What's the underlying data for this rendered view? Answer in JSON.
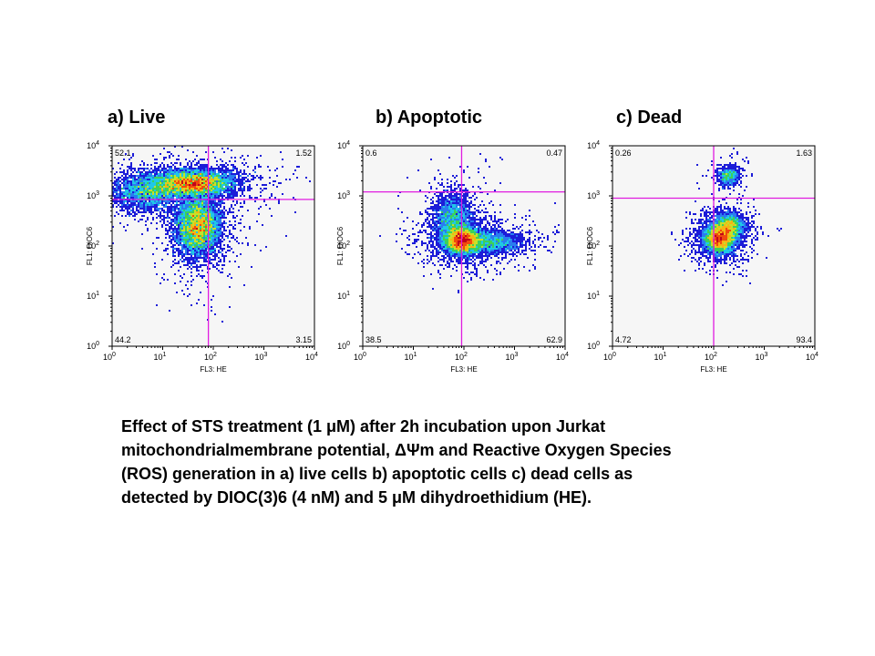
{
  "panels": [
    {
      "title": "a) Live",
      "xlabel": "FL3: HE",
      "ylabel": "FL1: DiOC6",
      "quadrants": {
        "ul": "52.1",
        "ur": "1.52",
        "ll": "44.2",
        "lr": "3.15"
      },
      "gate": {
        "x": 80,
        "y": 850
      }
    },
    {
      "title": "b) Apoptotic",
      "xlabel": "FL3: HE",
      "ylabel": "FL1: DiOC6",
      "quadrants": {
        "ul": "0.6",
        "ur": "0.47",
        "ll": "38.5",
        "lr": "62.9"
      },
      "gate": {
        "x": 90,
        "y": 1200
      }
    },
    {
      "title": "c) Dead",
      "xlabel": "FL3: HE",
      "ylabel": "FL1: DiOC6",
      "quadrants": {
        "ul": "0.26",
        "ur": "1.63",
        "ll": "4.72",
        "lr": "93.4"
      },
      "gate": {
        "x": 100,
        "y": 900
      }
    }
  ],
  "caption": {
    "line1": "Effect of STS treatment (1 μM) after 2h incubation upon Jurkat",
    "line2": "mitochondrialmembrane potential, ΔΨm and Reactive Oxygen Species",
    "line3": "(ROS) generation in a) live cells b) apoptotic cells c) dead cells as",
    "line4": "detected by DIOC(3)6 (4 nM) and 5 μM dihydroethidium (HE)."
  },
  "chart_data": [
    {
      "type": "scatter",
      "title": "a) Live",
      "xlabel": "FL3: HE",
      "ylabel": "FL1: DiOC6",
      "xscale": "log",
      "yscale": "log",
      "xlim": [
        1,
        10000
      ],
      "ylim": [
        1,
        10000
      ],
      "x_tick_labels": [
        "10^0",
        "10^1",
        "10^2",
        "10^3",
        "10^4"
      ],
      "y_tick_labels": [
        "10^0",
        "10^1",
        "10^2",
        "10^3",
        "10^4"
      ],
      "gate_lines": {
        "x": 80,
        "y": 850
      },
      "quadrant_percentages": {
        "upper_left": 52.1,
        "upper_right": 1.52,
        "lower_left": 44.2,
        "lower_right": 3.15
      },
      "populations": [
        {
          "center": [
            40,
            1800
          ],
          "spread_decades": [
            0.4,
            0.13
          ],
          "density": "high"
        },
        {
          "center": [
            50,
            250
          ],
          "spread_decades": [
            0.22,
            0.3
          ],
          "density": "high"
        },
        {
          "center": [
            5,
            1200
          ],
          "spread_decades": [
            0.35,
            0.18
          ],
          "density": "medium"
        }
      ]
    },
    {
      "type": "scatter",
      "title": "b) Apoptotic",
      "xlabel": "FL3: HE",
      "ylabel": "FL1: DiOC6",
      "xscale": "log",
      "yscale": "log",
      "xlim": [
        1,
        10000
      ],
      "ylim": [
        1,
        10000
      ],
      "x_tick_labels": [
        "10^0",
        "10^1",
        "10^2",
        "10^3",
        "10^4"
      ],
      "y_tick_labels": [
        "10^0",
        "10^1",
        "10^2",
        "10^3",
        "10^4"
      ],
      "gate_lines": {
        "x": 90,
        "y": 1200
      },
      "quadrant_percentages": {
        "upper_left": 0.6,
        "upper_right": 0.47,
        "lower_left": 38.5,
        "lower_right": 62.9
      },
      "populations": [
        {
          "center": [
            90,
            130
          ],
          "spread_decades": [
            0.18,
            0.14
          ],
          "density": "high"
        },
        {
          "center": [
            60,
            350
          ],
          "spread_decades": [
            0.2,
            0.25
          ],
          "density": "medium"
        },
        {
          "center": [
            300,
            120
          ],
          "spread_decades": [
            0.35,
            0.12
          ],
          "density": "medium"
        }
      ]
    },
    {
      "type": "scatter",
      "title": "c) Dead",
      "xlabel": "FL3: HE",
      "ylabel": "FL1: DiOC6",
      "xscale": "log",
      "yscale": "log",
      "xlim": [
        1,
        10000
      ],
      "ylim": [
        1,
        10000
      ],
      "x_tick_labels": [
        "10^0",
        "10^1",
        "10^2",
        "10^3",
        "10^4"
      ],
      "y_tick_labels": [
        "10^0",
        "10^1",
        "10^2",
        "10^3",
        "10^4"
      ],
      "gate_lines": {
        "x": 100,
        "y": 900
      },
      "quadrant_percentages": {
        "upper_left": 0.26,
        "upper_right": 1.63,
        "lower_left": 4.72,
        "lower_right": 93.4
      },
      "populations": [
        {
          "center": [
            130,
            140
          ],
          "spread_decades": [
            0.15,
            0.14
          ],
          "density": "high"
        },
        {
          "center": [
            200,
            250
          ],
          "spread_decades": [
            0.15,
            0.12
          ],
          "density": "medium"
        },
        {
          "center": [
            200,
            2500
          ],
          "spread_decades": [
            0.1,
            0.09
          ],
          "density": "low"
        }
      ]
    }
  ]
}
